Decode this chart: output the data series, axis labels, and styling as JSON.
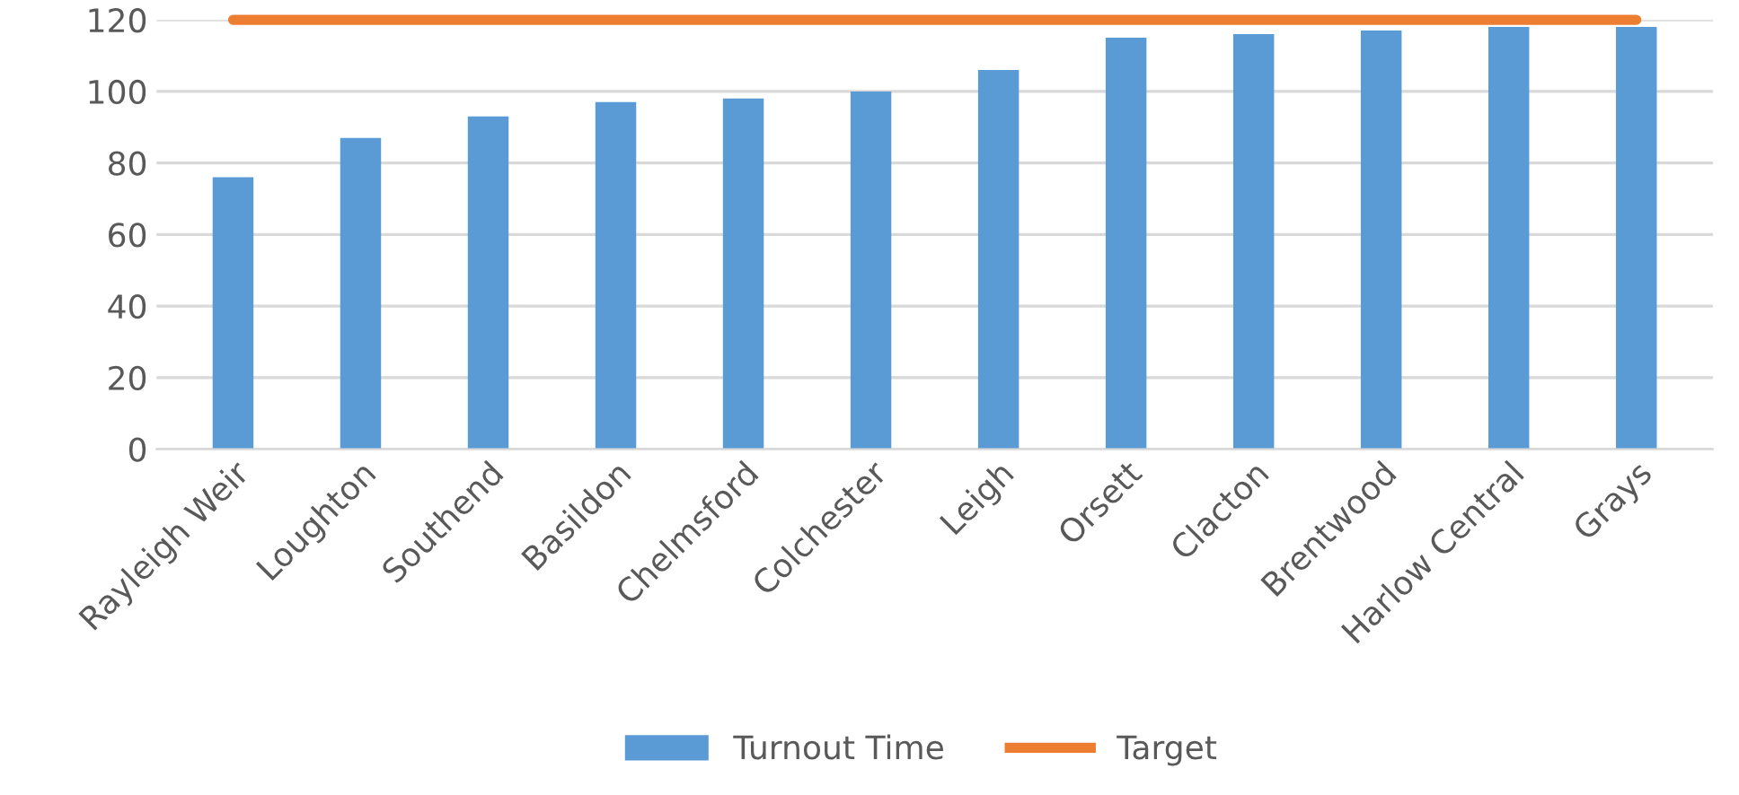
{
  "chart_data": {
    "type": "bar",
    "categories": [
      "Rayleigh Weir",
      "Loughton",
      "Southend",
      "Basildon",
      "Chelmsford",
      "Colchester",
      "Leigh",
      "Orsett",
      "Clacton",
      "Brentwood",
      "Harlow Central",
      "Grays"
    ],
    "series": [
      {
        "name": "Turnout Time",
        "color": "#5b9bd5",
        "values": [
          76,
          87,
          93,
          97,
          98,
          100,
          106,
          115,
          116,
          117,
          118,
          118
        ]
      },
      {
        "name": "Target",
        "type": "line",
        "color": "#ed7d31",
        "values": [
          120,
          120,
          120,
          120,
          120,
          120,
          120,
          120,
          120,
          120,
          120,
          120
        ]
      }
    ],
    "ylim": [
      0,
      120
    ],
    "yticks": [
      0,
      20,
      40,
      60,
      80,
      100,
      120
    ],
    "grid": "y",
    "legend": "bottom",
    "marker": "none",
    "line_style": "solid"
  }
}
